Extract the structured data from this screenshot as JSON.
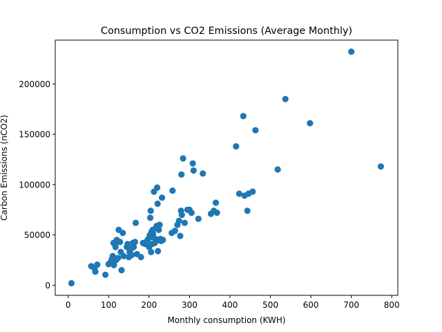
{
  "chart_data": {
    "type": "scatter",
    "title": "Consumption vs CO2 Emissions (Average Monthly)",
    "xlabel": "Monthly consumption (KWH)",
    "ylabel": "Carbon Emissions (nCO2)",
    "xlim": [
      -32,
      815
    ],
    "ylim": [
      -10000,
      243500
    ],
    "xticks": [
      0,
      100,
      200,
      300,
      400,
      500,
      600,
      700,
      800
    ],
    "yticks": [
      0,
      50000,
      100000,
      150000,
      200000
    ],
    "xtick_labels": [
      "0",
      "100",
      "200",
      "300",
      "400",
      "500",
      "600",
      "700",
      "800"
    ],
    "ytick_labels": [
      "0",
      "50000",
      "100000",
      "150000",
      "200000"
    ],
    "grid": false,
    "marker_color": "#1f77b4",
    "points": [
      [
        8,
        2000
      ],
      [
        57,
        19000
      ],
      [
        65,
        17000
      ],
      [
        67,
        13500
      ],
      [
        72,
        20500
      ],
      [
        92,
        10500
      ],
      [
        100,
        21000
      ],
      [
        105,
        23000
      ],
      [
        108,
        26000
      ],
      [
        110,
        29000
      ],
      [
        112,
        42000
      ],
      [
        113,
        20000
      ],
      [
        116,
        41000
      ],
      [
        117,
        38000
      ],
      [
        118,
        25000
      ],
      [
        120,
        45000
      ],
      [
        123,
        27000
      ],
      [
        125,
        55000
      ],
      [
        128,
        43000
      ],
      [
        130,
        33000
      ],
      [
        132,
        15000
      ],
      [
        135,
        52000
      ],
      [
        137,
        29000
      ],
      [
        145,
        38000
      ],
      [
        147,
        41000
      ],
      [
        150,
        28000
      ],
      [
        152,
        33000
      ],
      [
        155,
        36000
      ],
      [
        157,
        30000
      ],
      [
        160,
        42000
      ],
      [
        162,
        38000
      ],
      [
        165,
        43000
      ],
      [
        167,
        62000
      ],
      [
        170,
        31000
      ],
      [
        180,
        28000
      ],
      [
        185,
        42000
      ],
      [
        190,
        41000
      ],
      [
        195,
        44000
      ],
      [
        198,
        46000
      ],
      [
        200,
        38000
      ],
      [
        202,
        50000
      ],
      [
        203,
        67000
      ],
      [
        204,
        74000
      ],
      [
        205,
        33000
      ],
      [
        206,
        53000
      ],
      [
        207,
        48000
      ],
      [
        208,
        41000
      ],
      [
        209,
        55000
      ],
      [
        210,
        51000
      ],
      [
        212,
        93000
      ],
      [
        214,
        42000
      ],
      [
        216,
        46000
      ],
      [
        217,
        57000
      ],
      [
        218,
        44000
      ],
      [
        219,
        59000
      ],
      [
        220,
        97000
      ],
      [
        221,
        81000
      ],
      [
        222,
        34000
      ],
      [
        224,
        55000
      ],
      [
        226,
        60000
      ],
      [
        228,
        46000
      ],
      [
        230,
        44000
      ],
      [
        232,
        87000
      ],
      [
        234,
        45000
      ],
      [
        256,
        52000
      ],
      [
        258,
        94000
      ],
      [
        264,
        54000
      ],
      [
        270,
        60000
      ],
      [
        274,
        64000
      ],
      [
        277,
        49000
      ],
      [
        279,
        74000
      ],
      [
        280,
        110000
      ],
      [
        281,
        70000
      ],
      [
        284,
        126000
      ],
      [
        288,
        62000
      ],
      [
        295,
        75000
      ],
      [
        300,
        75000
      ],
      [
        305,
        72000
      ],
      [
        308,
        121000
      ],
      [
        310,
        114000
      ],
      [
        322,
        66000
      ],
      [
        333,
        111000
      ],
      [
        353,
        71000
      ],
      [
        360,
        74000
      ],
      [
        365,
        82000
      ],
      [
        368,
        72000
      ],
      [
        415,
        138000
      ],
      [
        423,
        91000
      ],
      [
        433,
        168000
      ],
      [
        436,
        89000
      ],
      [
        443,
        74000
      ],
      [
        446,
        91000
      ],
      [
        456,
        93000
      ],
      [
        463,
        154000
      ],
      [
        518,
        115000
      ],
      [
        537,
        185000
      ],
      [
        598,
        161000
      ],
      [
        700,
        232000
      ],
      [
        773,
        118000
      ]
    ]
  }
}
